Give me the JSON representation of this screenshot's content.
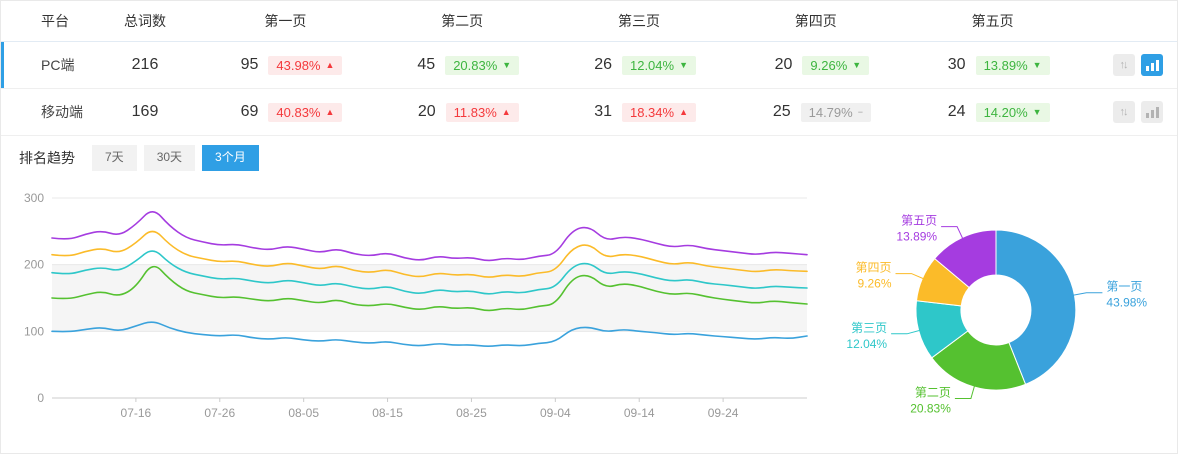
{
  "colors": {
    "accent": "#2f9fe5",
    "up": "#f4393c",
    "up_bg": "#fdeaea",
    "down": "#3eb540",
    "down_bg": "#e9f8e4",
    "flat": "#9a9a9a",
    "flat_bg": "#f0f0f0"
  },
  "table": {
    "headers": [
      "平台",
      "总词数",
      "第一页",
      "第二页",
      "第三页",
      "第四页",
      "第五页"
    ],
    "rows": [
      {
        "platform": "PC端",
        "total": "216",
        "selected": true,
        "chart_active": true,
        "pages": [
          {
            "count": "95",
            "pct": "43.98%",
            "dir": "up"
          },
          {
            "count": "45",
            "pct": "20.83%",
            "dir": "down"
          },
          {
            "count": "26",
            "pct": "12.04%",
            "dir": "down"
          },
          {
            "count": "20",
            "pct": "9.26%",
            "dir": "down"
          },
          {
            "count": "30",
            "pct": "13.89%",
            "dir": "down"
          }
        ]
      },
      {
        "platform": "移动端",
        "total": "169",
        "selected": false,
        "chart_active": false,
        "pages": [
          {
            "count": "69",
            "pct": "40.83%",
            "dir": "up"
          },
          {
            "count": "20",
            "pct": "11.83%",
            "dir": "up"
          },
          {
            "count": "31",
            "pct": "18.34%",
            "dir": "up"
          },
          {
            "count": "25",
            "pct": "14.79%",
            "dir": "flat"
          },
          {
            "count": "24",
            "pct": "14.20%",
            "dir": "down"
          }
        ]
      }
    ]
  },
  "trend": {
    "title": "排名趋势",
    "tabs": [
      "7天",
      "30天",
      "3个月"
    ],
    "active_tab": "3个月"
  },
  "chart_data": [
    {
      "type": "line",
      "title": "排名趋势 (3个月)",
      "stacked_cumulative": true,
      "x_ticks": [
        "07-16",
        "07-26",
        "08-05",
        "08-15",
        "08-25",
        "09-04",
        "09-14",
        "09-24"
      ],
      "ylim": [
        0,
        300
      ],
      "y_ticks": [
        0,
        100,
        200,
        300
      ],
      "grid": true,
      "split_band": [
        100,
        200
      ],
      "series": [
        {
          "name": "第一页",
          "color": "#3aa2dc",
          "values": [
            100,
            99,
            103,
            106,
            100,
            108,
            116,
            105,
            98,
            95,
            93,
            95,
            90,
            88,
            91,
            87,
            85,
            88,
            84,
            82,
            85,
            80,
            78,
            82,
            79,
            80,
            77,
            80,
            78,
            82,
            84,
            104,
            107,
            99,
            103,
            100,
            98,
            95,
            97,
            94,
            92,
            90,
            88,
            91,
            89,
            93
          ]
        },
        {
          "name": "第二页",
          "color": "#55c130",
          "values": [
            150,
            148,
            155,
            160,
            152,
            166,
            205,
            178,
            160,
            155,
            150,
            152,
            148,
            145,
            150,
            146,
            142,
            148,
            140,
            138,
            142,
            136,
            132,
            138,
            134,
            136,
            130,
            135,
            132,
            138,
            140,
            180,
            186,
            165,
            172,
            168,
            160,
            155,
            158,
            152,
            148,
            145,
            142,
            146,
            143,
            141
          ]
        },
        {
          "name": "第三页",
          "color": "#2ec7c9",
          "values": [
            188,
            185,
            192,
            196,
            190,
            205,
            226,
            202,
            188,
            183,
            178,
            180,
            175,
            172,
            177,
            173,
            168,
            173,
            166,
            163,
            168,
            160,
            156,
            163,
            159,
            161,
            155,
            160,
            157,
            163,
            165,
            198,
            204,
            185,
            190,
            187,
            180,
            175,
            178,
            172,
            170,
            167,
            164,
            168,
            166,
            165
          ]
        },
        {
          "name": "第四页",
          "color": "#fbbb29",
          "values": [
            215,
            212,
            220,
            225,
            217,
            232,
            256,
            230,
            214,
            209,
            204,
            206,
            200,
            197,
            203,
            198,
            193,
            199,
            191,
            188,
            193,
            185,
            181,
            188,
            184,
            186,
            180,
            185,
            182,
            188,
            190,
            225,
            232,
            210,
            216,
            213,
            206,
            200,
            204,
            198,
            195,
            192,
            189,
            193,
            191,
            190
          ]
        },
        {
          "name": "第五页",
          "color": "#a53ce0",
          "values": [
            240,
            237,
            246,
            251,
            243,
            260,
            286,
            258,
            240,
            234,
            229,
            231,
            225,
            222,
            228,
            223,
            218,
            224,
            216,
            213,
            218,
            210,
            206,
            213,
            209,
            211,
            205,
            210,
            207,
            213,
            215,
            252,
            258,
            236,
            242,
            239,
            232,
            226,
            230,
            224,
            221,
            218,
            215,
            219,
            217,
            215
          ]
        }
      ]
    },
    {
      "type": "pie",
      "title": "页面分布",
      "slices": [
        {
          "label": "第一页",
          "pct": 43.98,
          "color": "#3aa2dc"
        },
        {
          "label": "第二页",
          "pct": 20.83,
          "color": "#55c130"
        },
        {
          "label": "第三页",
          "pct": 12.04,
          "color": "#2ec7c9"
        },
        {
          "label": "第四页",
          "pct": 9.26,
          "color": "#fbbb29"
        },
        {
          "label": "第五页",
          "pct": 13.89,
          "color": "#a53ce0"
        }
      ]
    }
  ]
}
